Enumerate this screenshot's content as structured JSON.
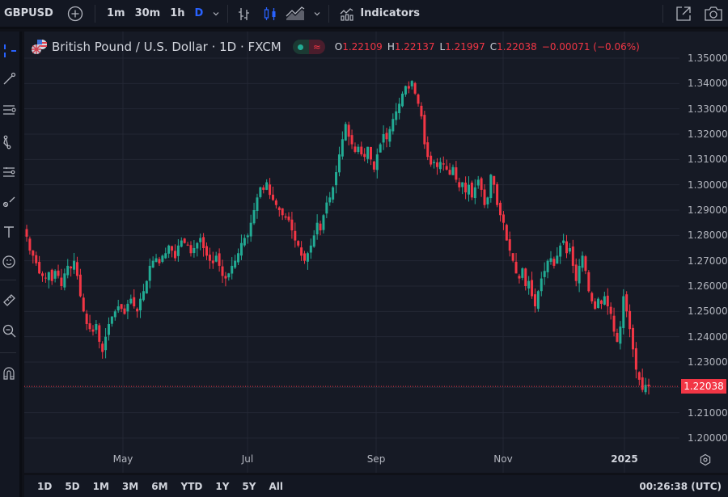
{
  "toolbar": {
    "symbol": "GBPUSD",
    "intervals": [
      "1m",
      "30m",
      "1h",
      "D"
    ],
    "active_interval": "D",
    "indicators_label": "Indicators",
    "icons": [
      "add-symbol-icon",
      "interval-dropdown-icon",
      "bar-chart-icon",
      "candles-icon",
      "area-chart-icon",
      "chart-type-dropdown-icon",
      "indicators-icon",
      "fullscreen-popout-icon",
      "snapshot-camera-icon"
    ]
  },
  "left_toolbar": {
    "icons": [
      "crosshair-icon",
      "trend-line-icon",
      "fib-retracement-icon",
      "pattern-icon",
      "forecasting-icon",
      "brush-icon",
      "text-icon",
      "emoji-icon",
      "ruler-icon",
      "zoom-in-icon",
      "magnet-icon"
    ]
  },
  "legend": {
    "title": "British Pound / U.S. Dollar · 1D · FXCM",
    "open_label": "O",
    "open": "1.22109",
    "high_label": "H",
    "high": "1.22137",
    "low_label": "L",
    "low": "1.21997",
    "close_label": "C",
    "close": "1.22038",
    "change": "−0.00071 (−0.06%)",
    "status_live_color": "#22ab94",
    "status_delay_glyph": "≈"
  },
  "price_axis": {
    "ticks": [
      "1.35000",
      "1.34000",
      "1.33000",
      "1.32000",
      "1.31000",
      "1.30000",
      "1.29000",
      "1.28000",
      "1.27000",
      "1.26000",
      "1.25000",
      "1.24000",
      "1.23000",
      "1.21000",
      "1.20000"
    ],
    "last_price": "1.22038",
    "last_price_color": "#f23645"
  },
  "time_axis": {
    "ticks": [
      "May",
      "Jul",
      "Sep",
      "Nov",
      "2025"
    ]
  },
  "bottom_bar": {
    "ranges": [
      "1D",
      "5D",
      "1M",
      "3M",
      "6M",
      "YTD",
      "1Y",
      "5Y",
      "All"
    ],
    "clock": "00:26:38 (UTC)"
  },
  "colors": {
    "up": "#22ab94",
    "down": "#f23645",
    "background": "#161a25",
    "grid": "#232734"
  },
  "chart_data": {
    "type": "candlestick",
    "title": "British Pound / U.S. Dollar · 1D · FXCM",
    "xlabel": "",
    "ylabel": "",
    "ylim": [
      1.195,
      1.355
    ],
    "y_ticks": [
      1.2,
      1.21,
      1.22,
      1.23,
      1.24,
      1.25,
      1.26,
      1.27,
      1.28,
      1.29,
      1.3,
      1.31,
      1.32,
      1.33,
      1.34,
      1.35
    ],
    "x_ticks": [
      "May",
      "Jul",
      "Sep",
      "Nov",
      "2025"
    ],
    "grid": true,
    "last_price": 1.22038,
    "ohlc_last": {
      "open": 1.22109,
      "high": 1.22137,
      "low": 1.21997,
      "close": 1.22038,
      "change": -0.00071,
      "change_pct": -0.06
    },
    "closes": [
      1.2795,
      1.274,
      1.272,
      1.269,
      1.265,
      1.264,
      1.263,
      1.2655,
      1.262,
      1.266,
      1.264,
      1.26,
      1.265,
      1.268,
      1.267,
      1.27,
      1.264,
      1.256,
      1.25,
      1.245,
      1.243,
      1.242,
      1.245,
      1.238,
      1.234,
      1.24,
      1.245,
      1.248,
      1.25,
      1.252,
      1.251,
      1.249,
      1.253,
      1.255,
      1.252,
      1.25,
      1.255,
      1.258,
      1.262,
      1.268,
      1.27,
      1.271,
      1.269,
      1.272,
      1.273,
      1.276,
      1.274,
      1.271,
      1.276,
      1.278,
      1.277,
      1.276,
      1.273,
      1.275,
      1.277,
      1.279,
      1.275,
      1.272,
      1.27,
      1.269,
      1.272,
      1.268,
      1.264,
      1.263,
      1.265,
      1.268,
      1.27,
      1.273,
      1.277,
      1.279,
      1.28,
      1.285,
      1.29,
      1.295,
      1.299,
      1.298,
      1.301,
      1.296,
      1.294,
      1.292,
      1.29,
      1.288,
      1.287,
      1.286,
      1.282,
      1.278,
      1.276,
      1.272,
      1.27,
      1.273,
      1.276,
      1.28,
      1.285,
      1.282,
      1.288,
      1.293,
      1.295,
      1.299,
      1.305,
      1.312,
      1.318,
      1.324,
      1.319,
      1.316,
      1.313,
      1.315,
      1.312,
      1.311,
      1.315,
      1.31,
      1.306,
      1.312,
      1.316,
      1.32,
      1.318,
      1.322,
      1.326,
      1.329,
      1.332,
      1.336,
      1.339,
      1.338,
      1.341,
      1.336,
      1.332,
      1.327,
      1.316,
      1.311,
      1.308,
      1.309,
      1.307,
      1.309,
      1.308,
      1.306,
      1.304,
      1.307,
      1.302,
      1.299,
      1.301,
      1.297,
      1.3,
      1.295,
      1.299,
      1.302,
      1.298,
      1.292,
      1.295,
      1.304,
      1.3,
      1.292,
      1.288,
      1.285,
      1.278,
      1.274,
      1.27,
      1.265,
      1.263,
      1.267,
      1.26,
      1.262,
      1.256,
      1.252,
      1.258,
      1.263,
      1.266,
      1.27,
      1.271,
      1.268,
      1.272,
      1.276,
      1.278,
      1.273,
      1.275,
      1.268,
      1.262,
      1.268,
      1.272,
      1.266,
      1.258,
      1.254,
      1.251,
      1.255,
      1.253,
      1.256,
      1.252,
      1.249,
      1.242,
      1.238,
      1.244,
      1.256,
      1.25,
      1.243,
      1.235,
      1.227,
      1.223,
      1.219,
      1.221,
      1.2204
    ]
  }
}
